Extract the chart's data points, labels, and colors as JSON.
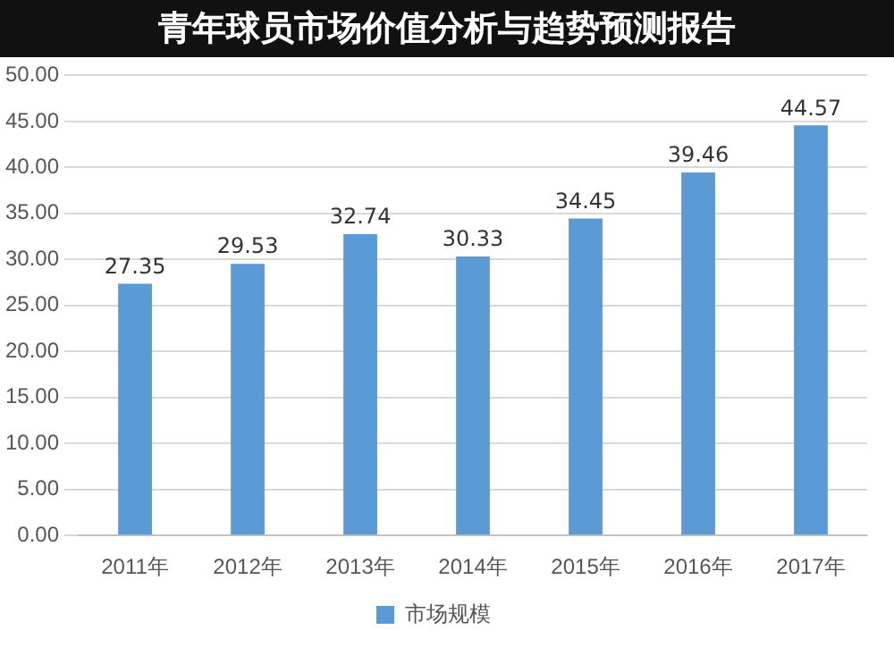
{
  "chart_data": {
    "type": "bar",
    "title": "青年球员市场价值分析与趋势预测报告",
    "categories": [
      "2011年",
      "2012年",
      "2013年",
      "2014年",
      "2015年",
      "2016年",
      "2017年"
    ],
    "series": [
      {
        "name": "市场规模",
        "color": "#5b9bd5",
        "values": [
          27.35,
          29.53,
          32.74,
          30.33,
          34.45,
          39.46,
          44.57
        ]
      }
    ],
    "ylim": [
      0,
      50
    ],
    "yticks": [
      {
        "value": 0,
        "label": "0.00"
      },
      {
        "value": 5,
        "label": "5.00"
      },
      {
        "value": 10,
        "label": "10.00"
      },
      {
        "value": 15,
        "label": "15.00"
      },
      {
        "value": 20,
        "label": "20.00"
      },
      {
        "value": 25,
        "label": "25.00"
      },
      {
        "value": 30,
        "label": "30.00"
      },
      {
        "value": 35,
        "label": "35.00"
      },
      {
        "value": 40,
        "label": "40.00"
      },
      {
        "value": 45,
        "label": "45.00"
      },
      {
        "value": 50,
        "label": "50.00"
      }
    ],
    "grid": "y",
    "legend": "bottom",
    "data_labels": true
  }
}
